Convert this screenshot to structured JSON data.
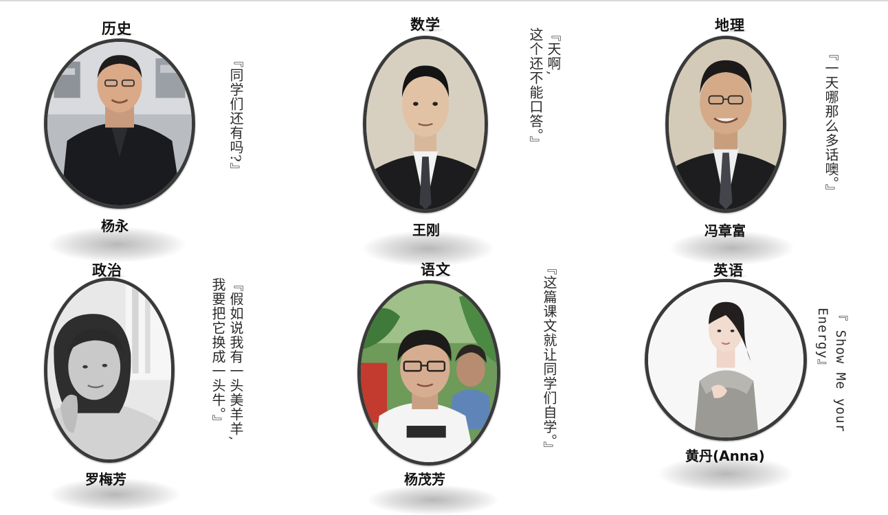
{
  "teachers": [
    {
      "subject": "历史",
      "name": "杨永",
      "quote": "『同学们还有吗?』",
      "photo_icon": "man-smiling-jacket-portrait-icon"
    },
    {
      "subject": "数学",
      "name": "王刚",
      "quote": "『天啊,\n这个还不能口答。』",
      "photo_icon": "man-suit-tie-portrait-icon"
    },
    {
      "subject": "地理",
      "name": "冯章富",
      "quote": "『一天哪那么多话噢。』",
      "photo_icon": "man-glasses-suit-portrait-icon"
    },
    {
      "subject": "政治",
      "name": "罗梅芳",
      "quote": "『假如说我有一头美羊羊,\n我要把它换成一头牛。』",
      "photo_icon": "woman-grayscale-portrait-icon"
    },
    {
      "subject": "语文",
      "name": "杨茂芳",
      "quote": "『这篇课文就让同学们自学。』",
      "photo_icon": "woman-glasses-garden-portrait-icon"
    },
    {
      "subject": "英语",
      "name": "黄丹(Anna)",
      "quote": "『 Show Me your\nEnergy』",
      "photo_icon": "woman-gray-dress-portrait-icon"
    }
  ]
}
